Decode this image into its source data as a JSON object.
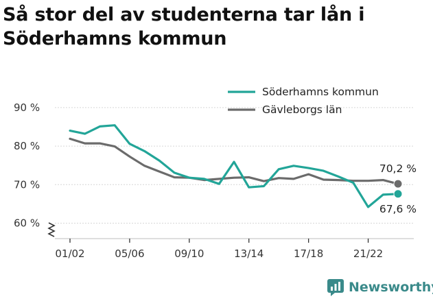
{
  "title": "Så stor del av studenterna tar lån i Söderhamns kommun",
  "brand": {
    "name": "Newsworthy",
    "icon": "newsworthy-logo-icon",
    "color": "#3a8a8a"
  },
  "chart_data": {
    "type": "line",
    "x": [
      "01/02",
      "02/03",
      "03/04",
      "04/05",
      "05/06",
      "06/07",
      "07/08",
      "08/09",
      "09/10",
      "10/11",
      "11/12",
      "12/13",
      "13/14",
      "14/15",
      "15/16",
      "16/17",
      "17/18",
      "18/19",
      "19/20",
      "20/21",
      "21/22",
      "22/23",
      "23/24"
    ],
    "x_tick_labels": [
      "01/02",
      "05/06",
      "09/10",
      "13/14",
      "17/18",
      "21/22"
    ],
    "y_ticks": [
      60,
      70,
      80,
      90
    ],
    "y_tick_labels": [
      "60 %",
      "70 %",
      "80 %",
      "90 %"
    ],
    "ylim": [
      56,
      93
    ],
    "grid": true,
    "legend_position": "top-right",
    "series": [
      {
        "name": "Söderhamns kommun",
        "color": "#22a598",
        "values": [
          84.0,
          83.2,
          85.1,
          85.4,
          80.6,
          78.7,
          76.2,
          73.1,
          71.8,
          71.5,
          70.2,
          75.9,
          69.3,
          69.6,
          74.0,
          74.9,
          74.3,
          73.6,
          72.1,
          70.5,
          64.2,
          67.4,
          67.6
        ],
        "end_label": "67,6 %"
      },
      {
        "name": "Gävleborgs län",
        "color": "#6b6b6b",
        "values": [
          81.9,
          80.7,
          80.7,
          79.9,
          77.3,
          74.9,
          73.4,
          71.9,
          71.8,
          71.2,
          71.5,
          71.8,
          71.9,
          70.9,
          71.7,
          71.5,
          72.7,
          71.3,
          71.2,
          71.0,
          71.0,
          71.2,
          70.2
        ],
        "end_label": "70,2 %"
      }
    ]
  }
}
